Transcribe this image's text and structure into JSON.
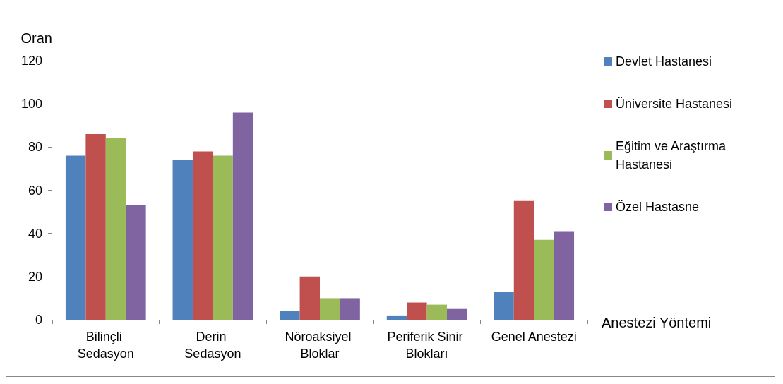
{
  "chart_data": {
    "type": "bar",
    "ylabel": "Oran",
    "xlabel": "Anestezi Yöntemi",
    "categories": [
      "Bilinçli Sedasyon",
      "Derin Sedasyon",
      "Nöroaksiyel Bloklar",
      "Periferik Sinir Blokları",
      "Genel Anestezi"
    ],
    "series": [
      {
        "name": "Devlet Hastanesi",
        "color": "#4f81bd",
        "values": [
          76,
          74,
          4,
          2,
          13
        ]
      },
      {
        "name": "Üniversite Hastanesi",
        "color": "#c0504d",
        "values": [
          86,
          78,
          20,
          8,
          55
        ]
      },
      {
        "name": "Eğitim ve Araştırma Hastanesi",
        "color": "#9bbb59",
        "values": [
          84,
          76,
          10,
          7,
          37
        ]
      },
      {
        "name": "Özel Hastasne",
        "color": "#8064a2",
        "values": [
          53,
          96,
          10,
          5,
          41
        ]
      }
    ],
    "ylim": [
      0,
      120
    ],
    "yticks": [
      0,
      20,
      40,
      60,
      80,
      100,
      120
    ],
    "grid": false,
    "legend": "right"
  }
}
